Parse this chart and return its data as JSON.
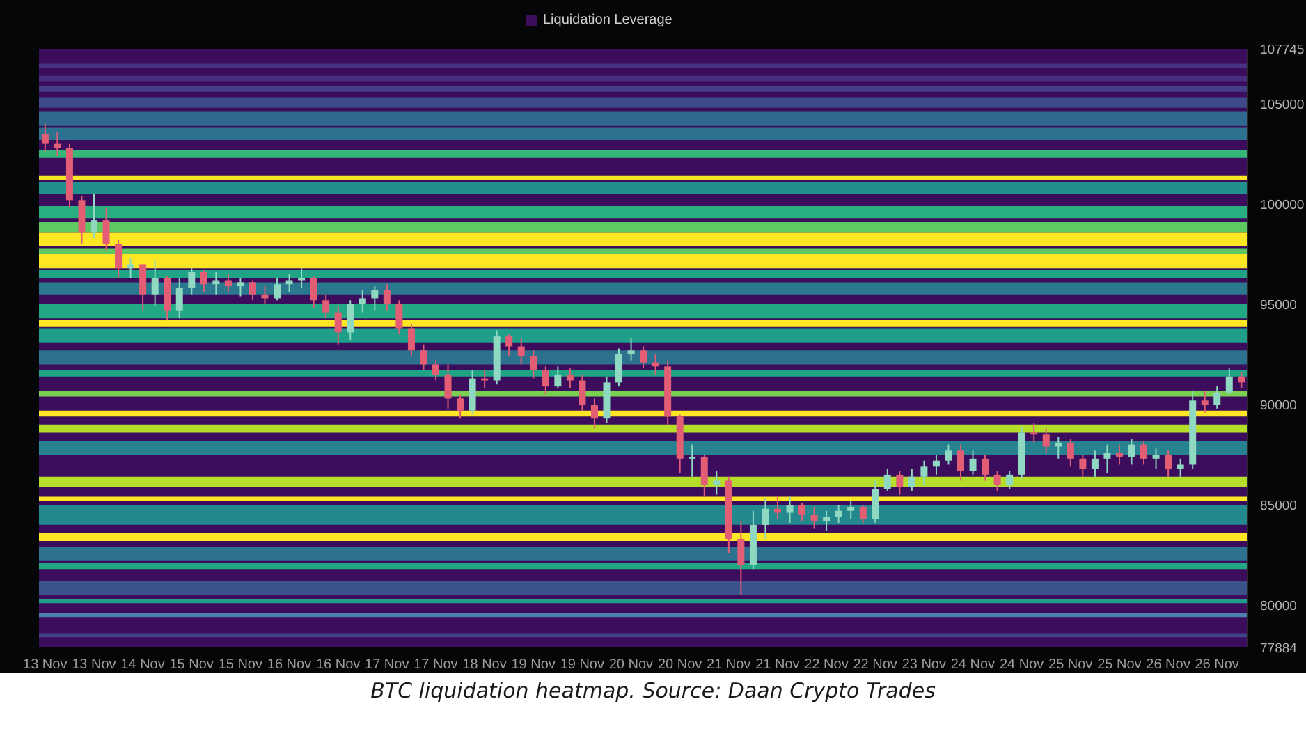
{
  "chart_data": {
    "type": "candlestick",
    "categories": [
      "13 Nov",
      null,
      null,
      null,
      "13 Nov",
      null,
      null,
      null,
      "14 Nov",
      null,
      null,
      null,
      "15 Nov",
      null,
      null,
      null,
      "15 Nov",
      null,
      null,
      null,
      "16 Nov",
      null,
      null,
      null,
      "16 Nov",
      null,
      null,
      null,
      "17 Nov",
      null,
      null,
      null,
      "17 Nov",
      null,
      null,
      null,
      "18 Nov",
      null,
      null,
      null,
      "19 Nov",
      null,
      null,
      null,
      "19 Nov",
      null,
      null,
      null,
      "20 Nov",
      null,
      null,
      null,
      "20 Nov",
      null,
      null,
      null,
      "21 Nov",
      null,
      null,
      null,
      "21 Nov",
      null,
      null,
      null,
      "22 Nov",
      null,
      null,
      null,
      "22 Nov",
      null,
      null,
      null,
      "23 Nov",
      null,
      null,
      null,
      "24 Nov",
      null,
      null,
      null,
      "24 Nov",
      null,
      null,
      null,
      "25 Nov",
      null,
      null,
      null,
      "25 Nov",
      null,
      null,
      null,
      "26 Nov",
      null,
      null,
      null,
      "26 Nov",
      null,
      null
    ],
    "ohlc": [
      [
        103500,
        104000,
        102600,
        103000
      ],
      [
        103000,
        103600,
        102400,
        102800
      ],
      [
        102800,
        103000,
        99800,
        100200
      ],
      [
        100200,
        100400,
        98000,
        98600
      ],
      [
        98600,
        100500,
        98300,
        99200
      ],
      [
        99200,
        99800,
        97700,
        98000
      ],
      [
        98000,
        98200,
        96300,
        96800
      ],
      [
        96800,
        97300,
        96300,
        97000
      ],
      [
        97000,
        97000,
        94700,
        95500
      ],
      [
        95500,
        97200,
        94900,
        96300
      ],
      [
        96300,
        96400,
        94200,
        94700
      ],
      [
        94700,
        96300,
        94300,
        95800
      ],
      [
        95800,
        96800,
        95500,
        96600
      ],
      [
        96600,
        96700,
        95600,
        96000
      ],
      [
        96000,
        96600,
        95500,
        96200
      ],
      [
        96200,
        96500,
        95600,
        95900
      ],
      [
        95900,
        96300,
        95400,
        96100
      ],
      [
        96100,
        96200,
        95200,
        95500
      ],
      [
        95500,
        95900,
        95000,
        95300
      ],
      [
        95300,
        96300,
        95200,
        96000
      ],
      [
        96000,
        96500,
        95600,
        96200
      ],
      [
        96200,
        96800,
        95800,
        96300
      ],
      [
        96300,
        96400,
        94800,
        95200
      ],
      [
        95200,
        95500,
        94300,
        94600
      ],
      [
        94600,
        94900,
        93000,
        93600
      ],
      [
        93600,
        95200,
        93200,
        95000
      ],
      [
        95000,
        95700,
        94600,
        95300
      ],
      [
        95300,
        95900,
        94700,
        95700
      ],
      [
        95700,
        96000,
        94700,
        95000
      ],
      [
        95000,
        95200,
        93500,
        93800
      ],
      [
        93800,
        94000,
        92400,
        92700
      ],
      [
        92700,
        93000,
        91700,
        92000
      ],
      [
        92000,
        92200,
        91200,
        91500
      ],
      [
        91500,
        92000,
        89800,
        90300
      ],
      [
        90300,
        90500,
        89300,
        89700
      ],
      [
        89700,
        91700,
        89500,
        91300
      ],
      [
        91300,
        91700,
        90800,
        91200
      ],
      [
        91200,
        93700,
        91000,
        93400
      ],
      [
        93400,
        93500,
        92400,
        92900
      ],
      [
        92900,
        93300,
        92000,
        92400
      ],
      [
        92400,
        92700,
        91300,
        91700
      ],
      [
        91700,
        91900,
        90500,
        90900
      ],
      [
        90900,
        91900,
        90800,
        91500
      ],
      [
        91500,
        91800,
        90800,
        91200
      ],
      [
        91200,
        91500,
        89700,
        90000
      ],
      [
        90000,
        90300,
        88800,
        89300
      ],
      [
        89300,
        91400,
        89100,
        91100
      ],
      [
        91100,
        92800,
        90900,
        92500
      ],
      [
        92500,
        93300,
        92200,
        92700
      ],
      [
        92700,
        92900,
        91800,
        92100
      ],
      [
        92100,
        92500,
        91500,
        91900
      ],
      [
        91900,
        92200,
        89000,
        89400
      ],
      [
        89400,
        89500,
        86600,
        87300
      ],
      [
        87300,
        88000,
        86400,
        87400
      ],
      [
        87400,
        87500,
        85400,
        86000
      ],
      [
        86000,
        86700,
        85500,
        86200
      ],
      [
        86200,
        86400,
        82600,
        83300
      ],
      [
        83300,
        84200,
        80500,
        82000
      ],
      [
        82000,
        84700,
        81800,
        84000
      ],
      [
        84000,
        85300,
        83300,
        84800
      ],
      [
        84800,
        85400,
        84300,
        84600
      ],
      [
        84600,
        85400,
        84100,
        85000
      ],
      [
        85000,
        85100,
        84200,
        84500
      ],
      [
        84500,
        84900,
        83800,
        84200
      ],
      [
        84200,
        84700,
        83700,
        84400
      ],
      [
        84400,
        85000,
        84100,
        84700
      ],
      [
        84700,
        85200,
        84300,
        84900
      ],
      [
        84900,
        85000,
        84100,
        84300
      ],
      [
        84300,
        86200,
        84100,
        85800
      ],
      [
        85800,
        86800,
        85700,
        86500
      ],
      [
        86500,
        86700,
        85500,
        85900
      ],
      [
        85900,
        86800,
        85700,
        86400
      ],
      [
        86400,
        87200,
        86000,
        86900
      ],
      [
        86900,
        87500,
        86500,
        87200
      ],
      [
        87200,
        88000,
        87000,
        87700
      ],
      [
        87700,
        88000,
        86200,
        86700
      ],
      [
        86700,
        87700,
        86500,
        87300
      ],
      [
        87300,
        87500,
        86200,
        86500
      ],
      [
        86500,
        86700,
        85700,
        86000
      ],
      [
        86000,
        86700,
        85800,
        86500
      ],
      [
        86500,
        88900,
        86300,
        88600
      ],
      [
        88600,
        89100,
        88100,
        88500
      ],
      [
        88500,
        88800,
        87600,
        87900
      ],
      [
        87900,
        88400,
        87300,
        88100
      ],
      [
        88100,
        88300,
        86900,
        87300
      ],
      [
        87300,
        87500,
        86400,
        86800
      ],
      [
        86800,
        87700,
        86400,
        87300
      ],
      [
        87300,
        88000,
        86600,
        87600
      ],
      [
        87600,
        88000,
        87000,
        87400
      ],
      [
        87400,
        88300,
        87000,
        88000
      ],
      [
        88000,
        88200,
        87000,
        87300
      ],
      [
        87300,
        87800,
        86800,
        87500
      ],
      [
        87500,
        87700,
        86400,
        86800
      ],
      [
        86800,
        87300,
        86400,
        87000
      ],
      [
        87000,
        90700,
        86800,
        90200
      ],
      [
        90200,
        90700,
        89600,
        90000
      ],
      [
        90000,
        90900,
        89800,
        90600
      ],
      [
        90600,
        91800,
        90500,
        91400
      ],
      [
        91400,
        91600,
        90800,
        91100
      ]
    ],
    "colors": [
      "#e35d75",
      "#e35d75",
      "#e35d75",
      "#e35d75",
      "#8fd8c2",
      "#e35d75",
      "#e35d75",
      "#8fd8c2",
      "#e35d75",
      "#8fd8c2",
      "#e35d75",
      "#8fd8c2",
      "#8fd8c2",
      "#e35d75",
      "#8fd8c2",
      "#e35d75",
      "#8fd8c2",
      "#e35d75",
      "#e35d75",
      "#8fd8c2",
      "#8fd8c2",
      "#8fd8c2",
      "#e35d75",
      "#e35d75",
      "#e35d75",
      "#8fd8c2",
      "#8fd8c2",
      "#8fd8c2",
      "#e35d75",
      "#e35d75",
      "#e35d75",
      "#e35d75",
      "#e35d75",
      "#e35d75",
      "#e35d75",
      "#8fd8c2",
      "#e35d75",
      "#8fd8c2",
      "#e35d75",
      "#e35d75",
      "#e35d75",
      "#e35d75",
      "#8fd8c2",
      "#e35d75",
      "#e35d75",
      "#e35d75",
      "#8fd8c2",
      "#8fd8c2",
      "#8fd8c2",
      "#e35d75",
      "#e35d75",
      "#e35d75",
      "#e35d75",
      "#8fd8c2",
      "#e35d75",
      "#8fd8c2",
      "#e35d75",
      "#e35d75",
      "#8fd8c2",
      "#8fd8c2",
      "#e35d75",
      "#8fd8c2",
      "#e35d75",
      "#e35d75",
      "#8fd8c2",
      "#8fd8c2",
      "#8fd8c2",
      "#e35d75",
      "#8fd8c2",
      "#8fd8c2",
      "#e35d75",
      "#8fd8c2",
      "#8fd8c2",
      "#8fd8c2",
      "#8fd8c2",
      "#e35d75",
      "#8fd8c2",
      "#e35d75",
      "#e35d75",
      "#8fd8c2",
      "#8fd8c2",
      "#e35d75",
      "#e35d75",
      "#8fd8c2",
      "#e35d75",
      "#e35d75",
      "#8fd8c2",
      "#8fd8c2",
      "#e35d75",
      "#8fd8c2",
      "#e35d75",
      "#8fd8c2",
      "#e35d75",
      "#8fd8c2",
      "#8fd8c2",
      "#e35d75",
      "#8fd8c2",
      "#8fd8c2",
      "#e35d75"
    ],
    "series": [
      {
        "name": "Liquidation Leverage",
        "color": "#3b0d5c",
        "type": "heatmap",
        "values": [
          null,
          null,
          null,
          null,
          null,
          null,
          null,
          null,
          null,
          null,
          null,
          null,
          null,
          null,
          null,
          null,
          null,
          null,
          null,
          null,
          null,
          null,
          null,
          null,
          null,
          null,
          null,
          null,
          null,
          null,
          null,
          null,
          null,
          null,
          null,
          null,
          null,
          null,
          null,
          null,
          null,
          null,
          null,
          null,
          null,
          null,
          null,
          null,
          null,
          null,
          null,
          null,
          null,
          null,
          null,
          null,
          null,
          null,
          null,
          null,
          null,
          null,
          null,
          null,
          null,
          null,
          null,
          null,
          null,
          null,
          null,
          null,
          null,
          null,
          null,
          null,
          null,
          null,
          null,
          null,
          null,
          null,
          null,
          null,
          null,
          null,
          null,
          null,
          null,
          null,
          null,
          null,
          null,
          null,
          null,
          null,
          null,
          null,
          null
        ]
      }
    ],
    "ylim": [
      77884,
      107745
    ],
    "yticks": [
      77884,
      80000,
      85000,
      90000,
      95000,
      100000,
      105000,
      107745
    ],
    "bands": [
      {
        "axis": "y",
        "from": 106800,
        "to": 107000,
        "color": "#46327e"
      },
      {
        "axis": "y",
        "from": 106100,
        "to": 106400,
        "color": "#472d7b"
      },
      {
        "axis": "y",
        "from": 105600,
        "to": 105900,
        "color": "#433e85"
      },
      {
        "axis": "y",
        "from": 104800,
        "to": 105300,
        "color": "#3e4a89"
      },
      {
        "axis": "y",
        "from": 103900,
        "to": 104600,
        "color": "#31688e"
      },
      {
        "axis": "y",
        "from": 103200,
        "to": 103800,
        "color": "#2c728e"
      },
      {
        "axis": "y",
        "from": 102300,
        "to": 102700,
        "color": "#35b779"
      },
      {
        "axis": "y",
        "from": 101200,
        "to": 101400,
        "color": "#fde725"
      },
      {
        "axis": "y",
        "from": 100500,
        "to": 101100,
        "color": "#21918c"
      },
      {
        "axis": "y",
        "from": 99300,
        "to": 99900,
        "color": "#29af7f"
      },
      {
        "axis": "y",
        "from": 98600,
        "to": 99100,
        "color": "#5ec962"
      },
      {
        "axis": "y",
        "from": 97900,
        "to": 98600,
        "color": "#fde725"
      },
      {
        "axis": "y",
        "from": 97500,
        "to": 97800,
        "color": "#5ec962"
      },
      {
        "axis": "y",
        "from": 96800,
        "to": 97500,
        "color": "#fde725"
      },
      {
        "axis": "y",
        "from": 96300,
        "to": 96700,
        "color": "#20a486"
      },
      {
        "axis": "y",
        "from": 95500,
        "to": 96100,
        "color": "#2a788e"
      },
      {
        "axis": "y",
        "from": 94300,
        "to": 95000,
        "color": "#22a884"
      },
      {
        "axis": "y",
        "from": 93900,
        "to": 94200,
        "color": "#fde725"
      },
      {
        "axis": "y",
        "from": 93100,
        "to": 93800,
        "color": "#1f9e89"
      },
      {
        "axis": "y",
        "from": 92000,
        "to": 92700,
        "color": "#2c728e"
      },
      {
        "axis": "y",
        "from": 91400,
        "to": 91700,
        "color": "#20a486"
      },
      {
        "axis": "y",
        "from": 90400,
        "to": 90700,
        "color": "#7ad151"
      },
      {
        "axis": "y",
        "from": 89400,
        "to": 89700,
        "color": "#fde725"
      },
      {
        "axis": "y",
        "from": 88600,
        "to": 89000,
        "color": "#b5de2b"
      },
      {
        "axis": "y",
        "from": 87500,
        "to": 88200,
        "color": "#26828e"
      },
      {
        "axis": "y",
        "from": 85900,
        "to": 86400,
        "color": "#b5de2b"
      },
      {
        "axis": "y",
        "from": 85200,
        "to": 85400,
        "color": "#fde725"
      },
      {
        "axis": "y",
        "from": 84000,
        "to": 85000,
        "color": "#23898e"
      },
      {
        "axis": "y",
        "from": 83200,
        "to": 83600,
        "color": "#fde725"
      },
      {
        "axis": "y",
        "from": 82200,
        "to": 82900,
        "color": "#2c728e"
      },
      {
        "axis": "y",
        "from": 81800,
        "to": 82100,
        "color": "#22a884"
      },
      {
        "axis": "y",
        "from": 80500,
        "to": 81200,
        "color": "#3b528b"
      },
      {
        "axis": "y",
        "from": 80100,
        "to": 80300,
        "color": "#1f9e89"
      },
      {
        "axis": "y",
        "from": 79400,
        "to": 79600,
        "color": "#4a7fb0"
      },
      {
        "axis": "y",
        "from": 78400,
        "to": 78600,
        "color": "#414487"
      }
    ],
    "legend": "top",
    "annotations": [
      "BTC liquidation heatmap. Source: Daan Crypto Trades"
    ]
  }
}
